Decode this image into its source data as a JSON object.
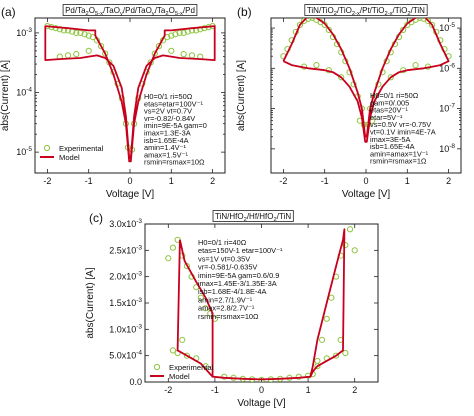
{
  "figure": {
    "background": "#ffffff",
    "exp_color": "#8cc63f",
    "model_color": "#c8001e"
  },
  "chart_data": [
    {
      "id": "a",
      "type": "line",
      "panel_label": "(a)",
      "title": "Pd/Ta2O5-x/TaOy/Pd/TaOy/Ta2O5-x/Pd",
      "title_parts": [
        [
          "Pd/Ta",
          ""
        ],
        [
          "2",
          "sub"
        ],
        [
          "O",
          ""
        ],
        [
          "5-x",
          "sub"
        ],
        [
          "/TaO",
          ""
        ],
        [
          "y",
          "sub"
        ],
        [
          "/Pd/TaO",
          ""
        ],
        [
          "y",
          "sub"
        ],
        [
          "/Ta",
          ""
        ],
        [
          "2",
          "sub"
        ],
        [
          "O",
          ""
        ],
        [
          "5-x",
          "sub"
        ],
        [
          "/Pd",
          ""
        ]
      ],
      "xlabel": "Voltage [V]",
      "ylabel": "abs(Current) [A]",
      "xlim": [
        -2.3,
        2.3
      ],
      "yscale": "log",
      "ylim": [
        -5.35,
        -2.75
      ],
      "xticks": [
        {
          "v": -2,
          "label": "-2"
        },
        {
          "v": -1,
          "label": "-1"
        },
        {
          "v": 0,
          "label": "0"
        },
        {
          "v": 1,
          "label": "1"
        },
        {
          "v": 2,
          "label": "2"
        }
      ],
      "yticks": [
        {
          "e": -5,
          "label": "10",
          "exp": "-5"
        },
        {
          "e": -4,
          "label": "10",
          "exp": "-4"
        },
        {
          "e": -3,
          "label": "10",
          "exp": "-3"
        }
      ],
      "legend": [
        {
          "label": "Experimental",
          "kind": "marker"
        },
        {
          "label": "Model",
          "kind": "line"
        }
      ],
      "legend_position": "bottom-left",
      "params": [
        "H0=0/1 ri=50Ω",
        "etas=etar=100V⁻¹",
        "vs=2V vt=0.7V",
        "vr=-0.82/-0.84V",
        "imin=9E-5A gam=0",
        "imax=1.3E-3A",
        "isb=1.65E-4A",
        "amin=1.4V⁻¹",
        "amax=1.5V⁻¹",
        "rsmin=rsmax=10Ω"
      ],
      "series": [
        {
          "name": "Experimental",
          "style": "marker",
          "x": [
            -2.0,
            -1.9,
            -1.8,
            -1.7,
            -1.6,
            -1.5,
            -1.4,
            -1.3,
            -1.2,
            -1.1,
            -1.0,
            -0.9,
            -0.8,
            -0.7,
            -0.6,
            -0.5,
            -0.4,
            -0.3,
            -0.2,
            -0.1,
            -0.05,
            0.05,
            0.1,
            0.2,
            0.3,
            0.4,
            0.5,
            0.6,
            0.7,
            0.8,
            0.9,
            1.0,
            1.1,
            1.2,
            1.3,
            1.4,
            1.5,
            1.6,
            1.7,
            1.8,
            1.9,
            2.0,
            -1.7,
            -1.5,
            -1.3,
            -1.0,
            1.0,
            1.3,
            1.5,
            1.7
          ],
          "y": [
            0.0013,
            0.00125,
            0.0012,
            0.00115,
            0.0011,
            0.0011,
            0.00105,
            0.001,
            0.001,
            0.00095,
            0.0009,
            0.00085,
            0.00075,
            0.0006,
            0.00045,
            0.00032,
            0.00022,
            0.00014,
            8e-05,
            3e-05,
            1.2e-05,
            1.1e-05,
            3e-05,
            8e-05,
            0.00014,
            0.00022,
            0.00032,
            0.00045,
            0.0006,
            0.00075,
            0.00085,
            0.0009,
            0.00095,
            0.001,
            0.001,
            0.00105,
            0.0011,
            0.0011,
            0.00115,
            0.0012,
            0.00125,
            0.0013,
            0.0004,
            0.00042,
            0.00044,
            0.0005,
            0.0005,
            0.00044,
            0.00042,
            0.0004
          ]
        },
        {
          "name": "Model",
          "style": "line",
          "x": [
            -2.05,
            -1.5,
            -1.0,
            -0.84,
            -0.84,
            -0.6,
            -0.4,
            -0.2,
            -0.1,
            -0.02,
            0.02,
            0.1,
            0.2,
            0.4,
            0.6,
            0.84,
            0.84,
            1.0,
            1.5,
            2.05,
            2.05,
            1.8,
            1.5,
            1.2,
            1.0,
            0.8,
            0.6,
            0.4,
            0.2,
            0.1,
            0.02,
            -0.02,
            -0.1,
            -0.2,
            -0.4,
            -0.6,
            -0.8,
            -1.0,
            -1.2,
            -1.5,
            -1.8,
            -2.05,
            -2.05
          ],
          "y": [
            0.0013,
            0.0012,
            0.0011,
            0.0011,
            0.0009,
            0.00045,
            0.0002,
            7e-05,
            3e-05,
            7e-06,
            7e-06,
            3e-05,
            7e-05,
            0.0002,
            0.00045,
            0.0009,
            0.0011,
            0.0011,
            0.0012,
            0.0013,
            0.00035,
            0.00036,
            0.00037,
            0.00038,
            0.0004,
            0.00042,
            0.00038,
            0.00028,
            0.00012,
            4e-05,
            8e-06,
            8e-06,
            4e-05,
            0.00012,
            0.00028,
            0.00038,
            0.00042,
            0.0004,
            0.00038,
            0.00037,
            0.00036,
            0.00035,
            0.0013
          ]
        }
      ]
    },
    {
      "id": "b",
      "type": "line",
      "panel_label": "(b)",
      "title": "TiN/TiO2/TiO2-x/Pt/TiO2-x/TiO2/TiN",
      "title_parts": [
        [
          "TiN/TiO",
          ""
        ],
        [
          "2",
          "sub"
        ],
        [
          "/TiO",
          ""
        ],
        [
          "2-x",
          "sub"
        ],
        [
          "/Pt/TiO",
          ""
        ],
        [
          "2-x",
          "sub"
        ],
        [
          "/TiO",
          ""
        ],
        [
          "2",
          "sub"
        ],
        [
          "/TiN",
          ""
        ]
      ],
      "xlabel": "Voltage [V]",
      "ylabel": "abs(Current) [A]",
      "xlim": [
        -2.3,
        2.3
      ],
      "yscale": "log",
      "ylim": [
        -8.6,
        -4.75
      ],
      "xticks": [
        {
          "v": -2,
          "label": "-2"
        },
        {
          "v": -1,
          "label": "-1"
        },
        {
          "v": 0,
          "label": "0"
        },
        {
          "v": 1,
          "label": "1"
        },
        {
          "v": 2,
          "label": "2"
        }
      ],
      "yticks": [
        {
          "e": -8,
          "label": "10",
          "exp": "-8"
        },
        {
          "e": -7,
          "label": "10",
          "exp": "-7"
        },
        {
          "e": -6,
          "label": "10",
          "exp": "-6"
        },
        {
          "e": -5,
          "label": "10",
          "exp": "-5"
        }
      ],
      "legend": [],
      "params": [
        "H0=0/1 ri=50Ω",
        "gam=0/.005",
        "etas=20V⁻¹",
        "etar=5V⁻¹",
        "vs=0.5V vr=-0.75V",
        "vt=0.1V imin=4E-7A",
        "imax=3E-5A",
        "isb=1.65E-4A",
        "amin=amax=1V⁻¹",
        "rsmin=rsmax=1Ω"
      ],
      "series": [
        {
          "name": "Experimental",
          "style": "marker",
          "x": [
            -2.0,
            -1.9,
            -1.8,
            -1.7,
            -1.6,
            -1.5,
            -1.4,
            -1.3,
            -1.2,
            -1.1,
            -1.0,
            -0.9,
            -0.8,
            -0.7,
            -0.6,
            -0.5,
            -0.4,
            -0.3,
            -0.2,
            -0.1,
            -0.05,
            0.05,
            0.1,
            0.2,
            0.3,
            0.4,
            0.5,
            0.6,
            0.7,
            0.8,
            0.9,
            1.0,
            1.1,
            1.2,
            1.3,
            1.4,
            1.5,
            1.6,
            1.7,
            1.8,
            1.9,
            2.0,
            -1.5,
            -1.2,
            -0.9,
            -0.6,
            0.6,
            0.9,
            1.2,
            1.5,
            -0.15,
            0.15
          ],
          "y": [
            2e-06,
            3e-06,
            5e-06,
            8e-06,
            1.2e-05,
            1.5e-05,
            1.7e-05,
            1.8e-05,
            1.6e-05,
            1.4e-05,
            1.2e-05,
            9e-06,
            6e-06,
            4e-06,
            2.5e-06,
            1.5e-06,
            8e-07,
            4e-07,
            2e-07,
            1e-07,
            4e-08,
            4e-08,
            1e-07,
            2e-07,
            4e-07,
            8e-07,
            1.5e-06,
            2.5e-06,
            4e-06,
            6e-06,
            9e-06,
            1.2e-05,
            1.4e-05,
            1.6e-05,
            1.8e-05,
            1.7e-05,
            1.5e-05,
            1.2e-05,
            8e-06,
            5e-06,
            3e-06,
            2e-06,
            1.1e-06,
            1.2e-06,
            9e-07,
            6e-07,
            6e-07,
            9e-07,
            1.2e-06,
            1.1e-06,
            5e-08,
            5e-08
          ]
        },
        {
          "name": "Model",
          "style": "line",
          "x": [
            -2.0,
            -1.8,
            -1.6,
            -1.4,
            -1.2,
            -1.0,
            -0.8,
            -0.6,
            -0.4,
            -0.2,
            -0.1,
            -0.02,
            0.02,
            0.1,
            0.2,
            0.4,
            0.6,
            0.8,
            1.0,
            1.2,
            1.4,
            1.6,
            1.8,
            2.0,
            1.8,
            1.6,
            1.4,
            1.2,
            1.0,
            0.8,
            0.6,
            0.4,
            0.2,
            0.1,
            0.02,
            -0.02,
            -0.1,
            -0.2,
            -0.4,
            -0.6,
            -0.8,
            -1.0,
            -1.2,
            -1.4,
            -1.6,
            -1.8,
            -2.0
          ],
          "y": [
            1.5e-06,
            4e-06,
            1.2e-05,
            2e-05,
            1.8e-05,
            1.3e-05,
            7e-06,
            3e-06,
            1e-06,
            2.5e-07,
            1e-07,
            2e-08,
            2e-08,
            1e-07,
            2.5e-07,
            1e-06,
            3e-06,
            7e-06,
            1.3e-05,
            1.8e-05,
            2e-05,
            1.2e-05,
            4e-06,
            1.5e-06,
            1.2e-06,
            1.1e-06,
            1e-06,
            9.5e-07,
            9e-07,
            8e-07,
            6e-07,
            3.5e-07,
            1.5e-07,
            6e-08,
            1.5e-08,
            1.5e-08,
            6e-08,
            1.5e-07,
            3.5e-07,
            6e-07,
            8e-07,
            9e-07,
            9.5e-07,
            1e-06,
            1.1e-06,
            1.2e-06,
            1.5e-06
          ]
        }
      ]
    },
    {
      "id": "c",
      "type": "line",
      "panel_label": "(c)",
      "title": "TiN/HfO2/Hf/HfO2/TiN",
      "title_parts": [
        [
          "TiN/HfO",
          ""
        ],
        [
          "2",
          "sub"
        ],
        [
          "/Hf/HfO",
          ""
        ],
        [
          "2",
          "sub"
        ],
        [
          "/TiN",
          ""
        ]
      ],
      "xlabel": "Voltage [V]",
      "ylabel": "abs(Current) [A]",
      "xlim": [
        -2.5,
        2.5
      ],
      "yscale": "linear",
      "ylim": [
        0,
        0.003
      ],
      "xticks": [
        {
          "v": -2,
          "label": "-2"
        },
        {
          "v": -1,
          "label": "-1"
        },
        {
          "v": 0,
          "label": "0"
        },
        {
          "v": 1,
          "label": "1"
        },
        {
          "v": 2,
          "label": "2"
        }
      ],
      "yticks": [
        {
          "v": 0,
          "label": "0.0"
        },
        {
          "v": 0.0005,
          "label": "5.0x10",
          "exp": "-4"
        },
        {
          "v": 0.001,
          "label": "1.0x10",
          "exp": "-3"
        },
        {
          "v": 0.0015,
          "label": "1.5x10",
          "exp": "-3"
        },
        {
          "v": 0.002,
          "label": "2.0x10",
          "exp": "-3"
        },
        {
          "v": 0.0025,
          "label": "2.5x10",
          "exp": "-3"
        },
        {
          "v": 0.003,
          "label": "3.0x10",
          "exp": "-3"
        }
      ],
      "legend": [
        {
          "label": "Experimental",
          "kind": "marker"
        },
        {
          "label": "Model",
          "kind": "line"
        }
      ],
      "legend_position": "bottom-left",
      "params": [
        "H0=0/1 ri=40Ω",
        "etas=150V-1 etar=100V⁻¹",
        "vs=1V vt=0.35V",
        "vr=-0.581/-0.635V",
        "imin=9E-5A gam=0.6/0.9",
        "imax=1.45E-3/1.35E-3A",
        "isb=1.68E-4/1.8E-4A",
        "amin=2.7/1.9V⁻¹",
        "amax=2.8/2.7V⁻¹",
        "rsmin=rsmax=10Ω"
      ],
      "series": [
        {
          "name": "Experimental",
          "style": "marker",
          "x": [
            -2.0,
            -1.9,
            -1.8,
            -1.7,
            -1.6,
            -1.5,
            -1.4,
            -1.3,
            -1.2,
            -1.1,
            -1.0,
            -0.8,
            -0.6,
            -0.4,
            -0.2,
            0.0,
            0.2,
            0.4,
            0.6,
            0.8,
            1.0,
            1.1,
            1.2,
            1.3,
            1.4,
            1.5,
            1.6,
            1.7,
            1.8,
            1.9,
            2.0,
            -1.8,
            -1.6,
            -1.4,
            -1.2,
            1.2,
            1.4,
            1.6,
            1.8,
            1.7,
            -1.7,
            -1.9
          ],
          "y": [
            0.00235,
            0.00255,
            0.0027,
            0.0024,
            0.0022,
            0.002,
            0.0018,
            0.0016,
            0.0014,
            0.0013,
            0.0012,
            0.0001,
            8e-05,
            6e-05,
            5e-05,
            4e-05,
            5e-05,
            6e-05,
            8e-05,
            0.0001,
            0.00012,
            0.00015,
            0.0004,
            0.0008,
            0.0012,
            0.0016,
            0.002,
            0.0024,
            0.0026,
            0.0029,
            0.0025,
            0.00055,
            0.0005,
            0.00045,
            0.0003,
            0.0003,
            0.00045,
            0.0005,
            0.00055,
            0.0008,
            0.0008,
            0.0006
          ]
        },
        {
          "name": "Model",
          "style": "line",
          "x": [
            -1.75,
            -1.65,
            -1.4,
            -1.2,
            -1.05,
            -1.05,
            -0.8,
            -0.4,
            0.0,
            0.4,
            0.8,
            1.05,
            1.1,
            1.2,
            1.4,
            1.6,
            1.75,
            1.78,
            1.75,
            1.6,
            1.4,
            1.2,
            1.1,
            1.05,
            0.8,
            0.4,
            0.0,
            -0.4,
            -0.8,
            -1.05,
            -1.1,
            -1.3,
            -1.5,
            -1.7,
            -1.8,
            -1.75
          ],
          "y": [
            0.0027,
            0.0023,
            0.0019,
            0.0016,
            0.0013,
            0.0001,
            8e-05,
            6e-05,
            5e-05,
            6e-05,
            8e-05,
            0.0001,
            0.0003,
            0.0008,
            0.0015,
            0.0022,
            0.0027,
            0.0029,
            0.0006,
            0.0005,
            0.0004,
            0.0003,
            0.0002,
            0.0001,
            8e-05,
            6e-05,
            5e-05,
            6e-05,
            8e-05,
            0.0001,
            0.00015,
            0.00035,
            0.00045,
            0.00055,
            0.0006,
            0.0027
          ]
        }
      ]
    }
  ]
}
